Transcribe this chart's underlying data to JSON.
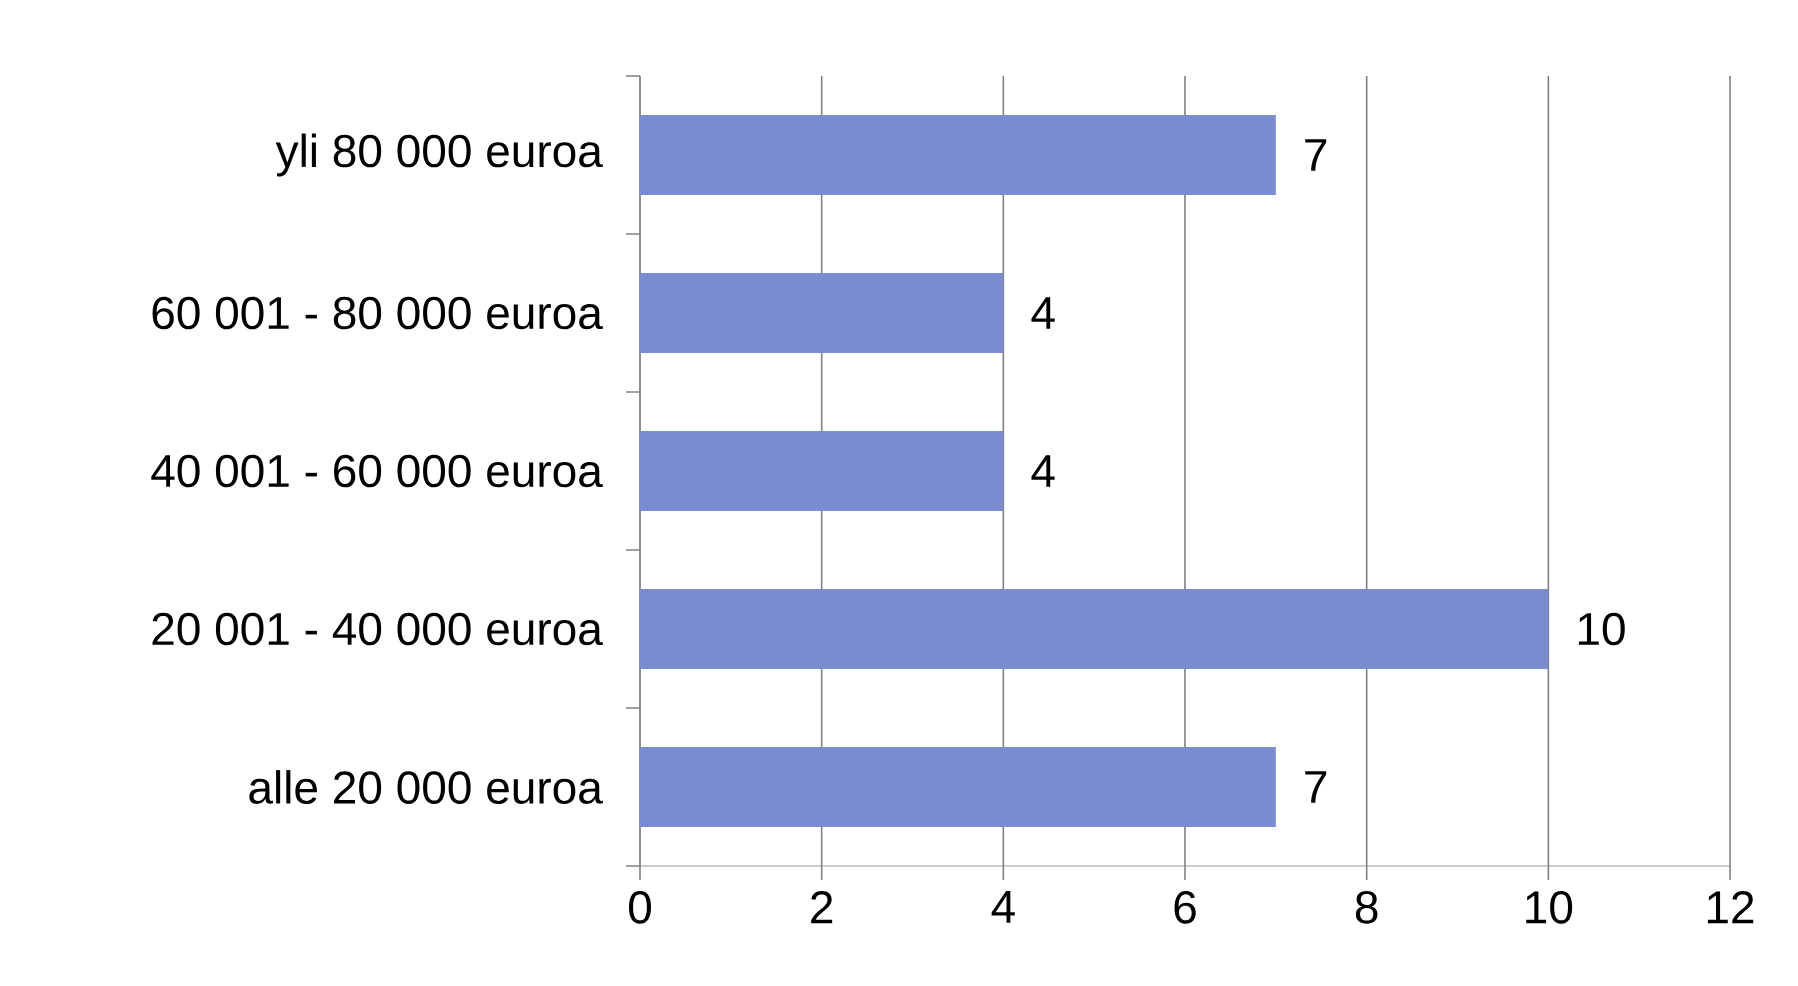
{
  "chart_data": {
    "type": "bar",
    "orientation": "horizontal",
    "categories": [
      "yli 80 000 euroa",
      "60 001 - 80 000 euroa",
      "40 001 - 60 000 euroa",
      "20 001 - 40 000 euroa",
      "alle 20 000 euroa"
    ],
    "values": [
      7,
      4,
      4,
      10,
      7
    ],
    "color": "#7b8bd0",
    "xlim": [
      0,
      12
    ],
    "xticks": [
      0,
      2,
      4,
      6,
      8,
      10,
      12
    ],
    "grid": "x",
    "data_labels": true
  }
}
